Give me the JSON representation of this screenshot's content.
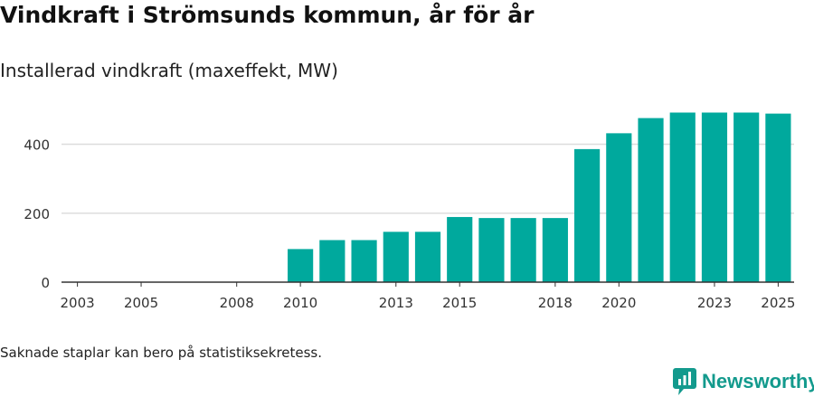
{
  "header": {
    "title": "Vindkraft i Strömsunds kommun, år för år",
    "subtitle": "Installerad vindkraft (maxeffekt, MW)"
  },
  "footer": {
    "note": "Saknade staplar kan bero på statistiksekretess.",
    "brand": "Newsworthy"
  },
  "colors": {
    "bar": "#00a99d",
    "brand": "#139a8d",
    "grid": "#dddddd",
    "axis": "#333333"
  },
  "chart_data": {
    "type": "bar",
    "title": "Vindkraft i Strömsunds kommun, år för år",
    "subtitle": "Installerad vindkraft (maxeffekt, MW)",
    "xlabel": "",
    "ylabel": "",
    "categories": [
      2003,
      2004,
      2005,
      2006,
      2007,
      2008,
      2009,
      2010,
      2011,
      2012,
      2013,
      2014,
      2015,
      2016,
      2017,
      2018,
      2019,
      2020,
      2021,
      2022,
      2023,
      2024,
      2025
    ],
    "values": [
      0,
      0,
      0,
      0,
      0,
      0,
      0,
      96,
      122,
      122,
      146,
      146,
      189,
      186,
      186,
      186,
      386,
      432,
      476,
      492,
      492,
      492,
      489
    ],
    "xticks": [
      "2003",
      "2005",
      "2008",
      "2010",
      "2013",
      "2015",
      "2018",
      "2020",
      "2023",
      "2025"
    ],
    "yticks": [
      0,
      200,
      400
    ],
    "ylim": [
      0,
      530
    ],
    "grid": true,
    "legend": "none"
  }
}
